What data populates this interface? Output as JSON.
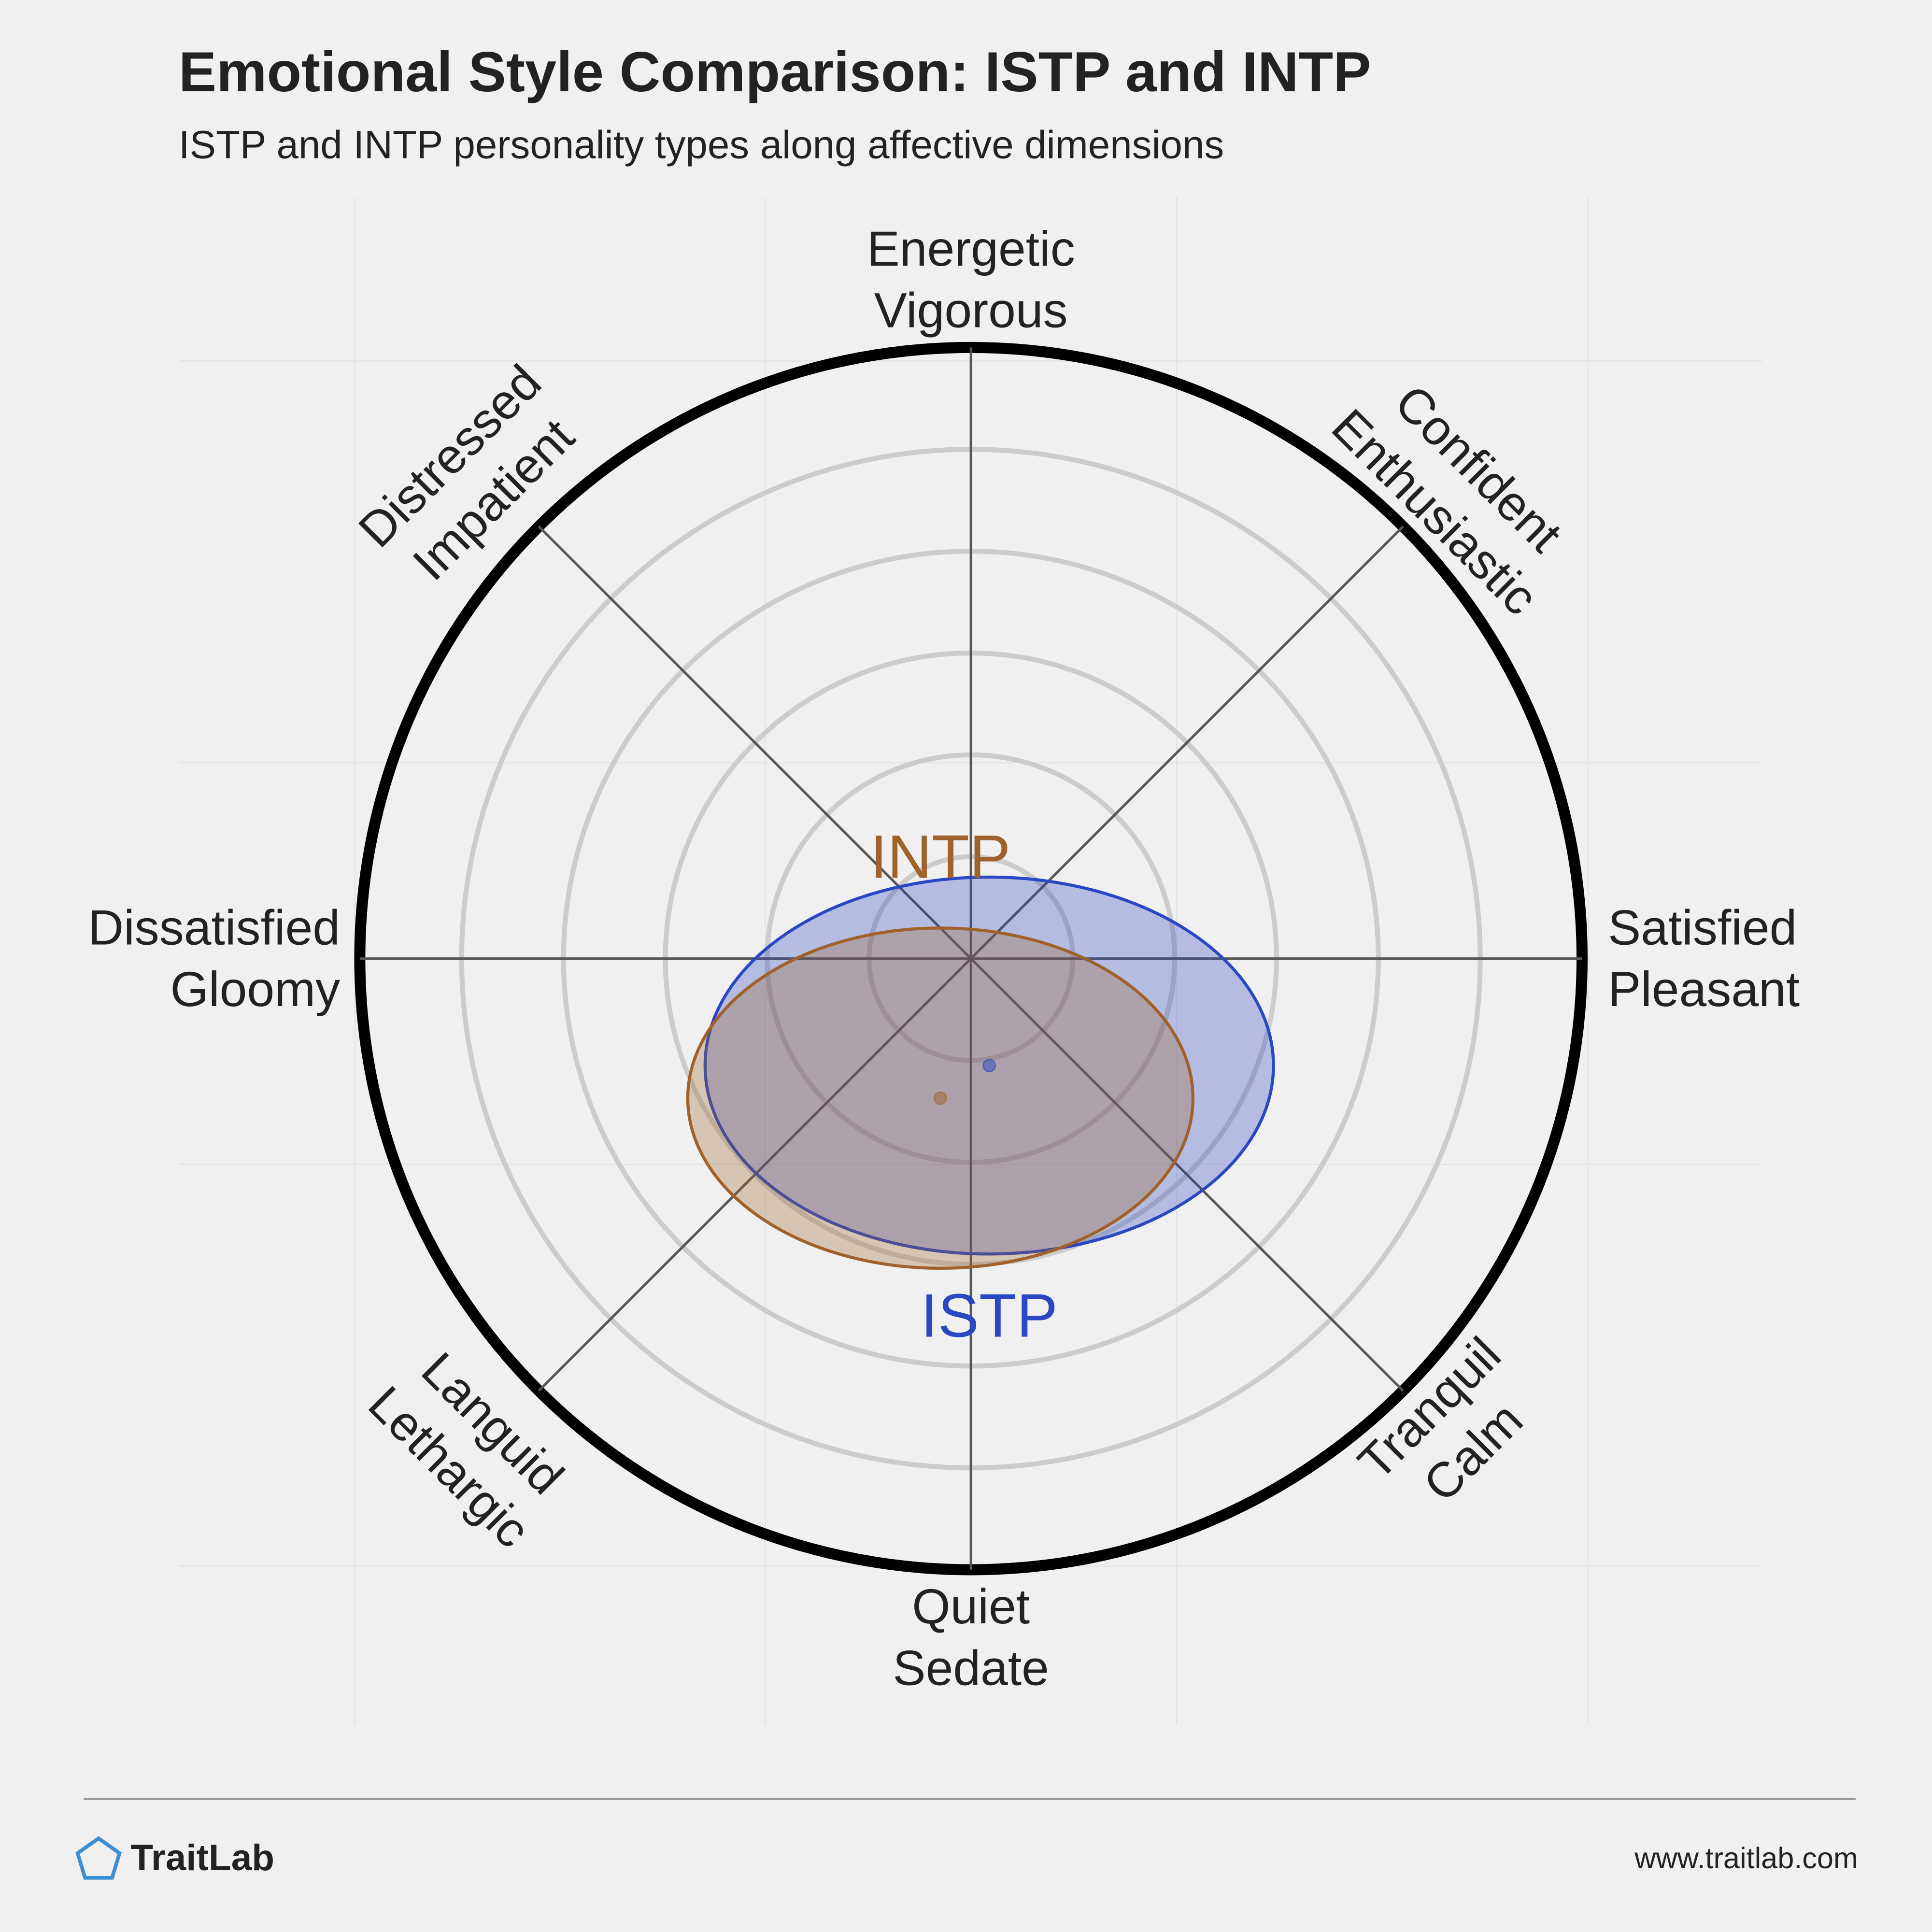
{
  "chart_data": {
    "type": "circumplex",
    "title": "Emotional Style Comparison: ISTP and INTP",
    "subtitle": "ISTP and INTP personality types along affective dimensions",
    "rlim": [
      0,
      6
    ],
    "rings": [
      1,
      2,
      3,
      4,
      5,
      6
    ],
    "axes": [
      {
        "lines": [
          "Energetic",
          "Vigorous"
        ]
      },
      {
        "lines": [
          "Confident",
          "Enthusiastic"
        ]
      },
      {
        "lines": [
          "Satisfied",
          "Pleasant"
        ]
      },
      {
        "lines": [
          "Tranquil",
          "Calm"
        ]
      },
      {
        "lines": [
          "Quiet",
          "Sedate"
        ]
      },
      {
        "lines": [
          "Languid",
          "Lethargic"
        ]
      },
      {
        "lines": [
          "Dissatisfied",
          "Gloomy"
        ]
      },
      {
        "lines": [
          "Distressed",
          "Impatient"
        ]
      }
    ],
    "series": [
      {
        "name": "ISTP",
        "color": "#2a47c4",
        "x": 0.18,
        "y": -1.05,
        "rx": 2.79,
        "ry": 1.85
      },
      {
        "name": "INTP",
        "color": "#a0622a",
        "x": -0.3,
        "y": -1.37,
        "rx": 2.48,
        "ry": 1.67
      }
    ],
    "footer": {
      "brand": "TraitLab",
      "url": "www.traitlab.com"
    }
  }
}
